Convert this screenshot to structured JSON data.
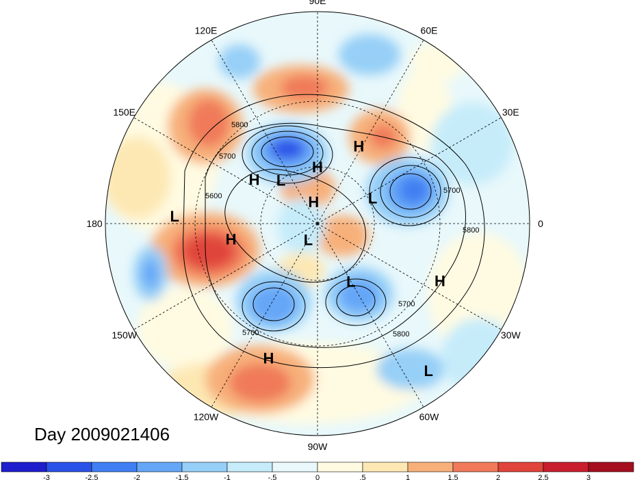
{
  "title": "Day 2009021406",
  "longitude_labels": [
    "90E",
    "60E",
    "30E",
    "0",
    "30W",
    "60W",
    "90W",
    "120W",
    "150W",
    "180",
    "150E",
    "120E"
  ],
  "contour_labels": [
    "5600",
    "5700",
    "5800"
  ],
  "centers": [
    {
      "type": "H",
      "lat": 60,
      "lon": 90
    },
    {
      "type": "H",
      "lat": 45,
      "lon": 62
    },
    {
      "type": "H",
      "lat": 50,
      "lon": 145
    },
    {
      "type": "L",
      "lat": 60,
      "lon": 130
    },
    {
      "type": "L",
      "lat": 22,
      "lon": 177
    },
    {
      "type": "H",
      "lat": 78,
      "lon": 100
    },
    {
      "type": "L",
      "lat": 58,
      "lon": 25
    },
    {
      "type": "L",
      "lat": 80,
      "lon": -120
    },
    {
      "type": "H",
      "lat": 45,
      "lon": -170
    },
    {
      "type": "L",
      "lat": 55,
      "lon": -60
    },
    {
      "type": "H",
      "lat": 25,
      "lon": -25
    },
    {
      "type": "H",
      "lat": 22,
      "lon": -110
    },
    {
      "type": "L",
      "lat": 8,
      "lon": -53
    }
  ],
  "colorbar": {
    "labels": [
      "-3",
      "-2.5",
      "-2",
      "-1.5",
      "-1",
      "-.5",
      "0",
      ".5",
      "1",
      "1.5",
      "2",
      "2.5",
      "3"
    ],
    "colors": [
      "#1e1ecc",
      "#2b52e8",
      "#3f7ff2",
      "#65a6f7",
      "#96cff7",
      "#c6ecfa",
      "#e8f8fb",
      "#fffbe2",
      "#fde8b4",
      "#f7b07a",
      "#f07a5a",
      "#e0443a",
      "#c81e2e",
      "#a50f20"
    ]
  }
}
